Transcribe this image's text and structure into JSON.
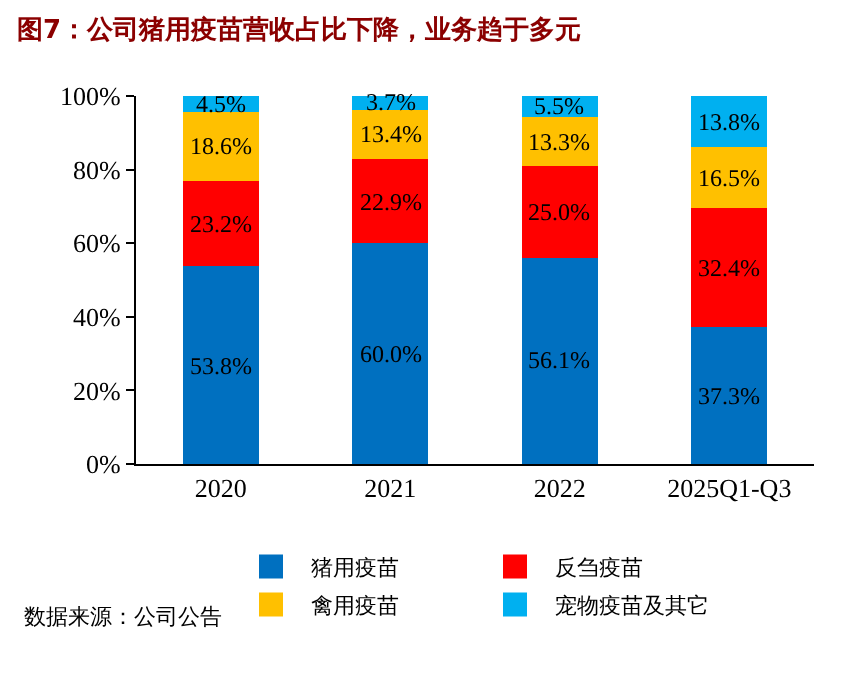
{
  "chart_data": {
    "type": "bar",
    "stacked": true,
    "title": "图7：公司猪用疫苗营收占比下降，业务趋于多元",
    "categories": [
      "2020",
      "2021",
      "2022",
      "2025Q1-Q3"
    ],
    "series": [
      {
        "name": "猪用疫苗",
        "color": "#0070c0",
        "values": [
          53.8,
          60.0,
          56.1,
          37.3
        ],
        "value_labels": [
          "53.8%",
          "60.0%",
          "56.1%",
          "37.3%"
        ]
      },
      {
        "name": "反刍疫苗",
        "color": "#ff0000",
        "values": [
          23.2,
          22.9,
          25.0,
          32.4
        ],
        "value_labels": [
          "23.2%",
          "22.9%",
          "25.0%",
          "32.4%"
        ]
      },
      {
        "name": "禽用疫苗",
        "color": "#ffc000",
        "values": [
          18.6,
          13.4,
          13.3,
          16.5
        ],
        "value_labels": [
          "18.6%",
          "13.4%",
          "13.3%",
          "16.5%"
        ]
      },
      {
        "name": "宠物疫苗及其它",
        "color": "#00b0f0",
        "values": [
          4.5,
          3.7,
          5.5,
          13.8
        ],
        "value_labels": [
          "4.5%",
          "3.7%",
          "5.5%",
          "13.8%"
        ]
      }
    ],
    "ylim": [
      0,
      100
    ],
    "yticks": [
      {
        "value": 0,
        "label": "0%"
      },
      {
        "value": 20,
        "label": "20%"
      },
      {
        "value": 40,
        "label": "40%"
      },
      {
        "value": 60,
        "label": "60%"
      },
      {
        "value": 80,
        "label": "80%"
      },
      {
        "value": 100,
        "label": "100%"
      }
    ],
    "grid": false,
    "legend": "bottom",
    "annotations": [
      "数据来源：公司公告"
    ]
  }
}
